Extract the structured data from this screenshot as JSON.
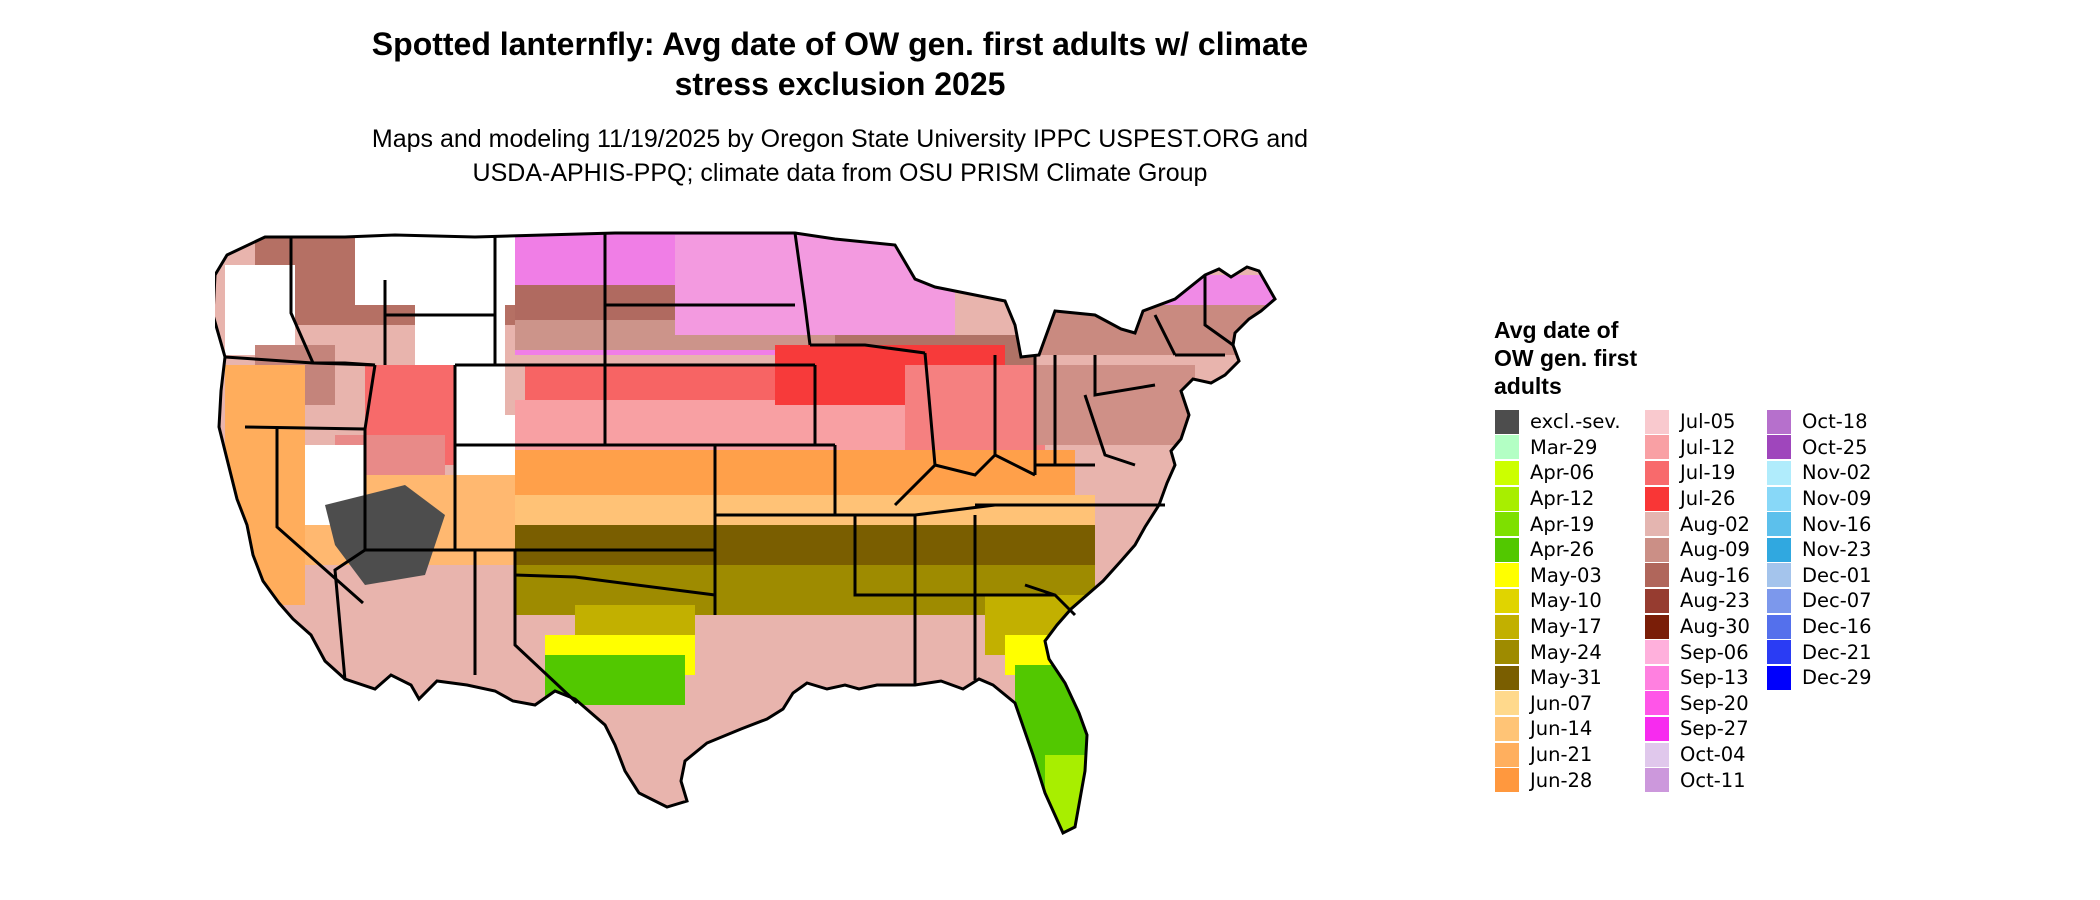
{
  "title_line1": "Spotted lanternfly: Avg date of OW gen. first adults w/ climate",
  "title_line2": "stress exclusion 2025",
  "subtitle_line1": "Maps and modeling 11/19/2025 by Oregon State University IPPC USPEST.ORG and",
  "subtitle_line2": "USDA-APHIS-PPQ; climate data from OSU PRISM Climate Group",
  "legend": {
    "title_lines": [
      "Avg date of",
      "OW gen. first",
      "adults"
    ],
    "columns": [
      [
        {
          "label": "excl.-sev.",
          "color": "#4d4d4d"
        },
        {
          "label": "Mar-29",
          "color": "#b3ffc4"
        },
        {
          "label": "Apr-06",
          "color": "#ccff00"
        },
        {
          "label": "Apr-12",
          "color": "#a8ee00"
        },
        {
          "label": "Apr-19",
          "color": "#7ee000"
        },
        {
          "label": "Apr-26",
          "color": "#52c800"
        },
        {
          "label": "May-03",
          "color": "#ffff00"
        },
        {
          "label": "May-10",
          "color": "#e0d400"
        },
        {
          "label": "May-17",
          "color": "#c2b000"
        },
        {
          "label": "May-24",
          "color": "#9e8b00"
        },
        {
          "label": "May-31",
          "color": "#7a5e00"
        },
        {
          "label": "Jun-07",
          "color": "#ffd98c"
        },
        {
          "label": "Jun-14",
          "color": "#ffc476"
        },
        {
          "label": "Jun-21",
          "color": "#ffaf5e"
        },
        {
          "label": "Jun-28",
          "color": "#ff983e"
        }
      ],
      [
        {
          "label": "Jul-05",
          "color": "#f9c9ce"
        },
        {
          "label": "Jul-12",
          "color": "#f9a0a4"
        },
        {
          "label": "Jul-19",
          "color": "#f86a6c"
        },
        {
          "label": "Jul-26",
          "color": "#f93636"
        },
        {
          "label": "Aug-02",
          "color": "#e4b5b0"
        },
        {
          "label": "Aug-09",
          "color": "#cb8f86"
        },
        {
          "label": "Aug-16",
          "color": "#b0665b"
        },
        {
          "label": "Aug-23",
          "color": "#963c30"
        },
        {
          "label": "Aug-30",
          "color": "#7a1e08"
        },
        {
          "label": "Sep-06",
          "color": "#ffb0dc"
        },
        {
          "label": "Sep-13",
          "color": "#ff80e0"
        },
        {
          "label": "Sep-20",
          "color": "#ff55e8"
        },
        {
          "label": "Sep-27",
          "color": "#f72bef"
        },
        {
          "label": "Oct-04",
          "color": "#e0c8ec"
        },
        {
          "label": "Oct-11",
          "color": "#cc98dc"
        }
      ],
      [
        {
          "label": "Oct-18",
          "color": "#b670cc"
        },
        {
          "label": "Oct-25",
          "color": "#9f46bc"
        },
        {
          "label": "Nov-02",
          "color": "#b0ecfc"
        },
        {
          "label": "Nov-09",
          "color": "#88d8f8"
        },
        {
          "label": "Nov-16",
          "color": "#5cc0ec"
        },
        {
          "label": "Nov-23",
          "color": "#30a8e0"
        },
        {
          "label": "Dec-01",
          "color": "#a4c4ec"
        },
        {
          "label": "Dec-07",
          "color": "#7c98ec"
        },
        {
          "label": "Dec-16",
          "color": "#5470ec"
        },
        {
          "label": "Dec-21",
          "color": "#2a3cf4"
        },
        {
          "label": "Dec-29",
          "color": "#0000fc"
        }
      ]
    ]
  }
}
